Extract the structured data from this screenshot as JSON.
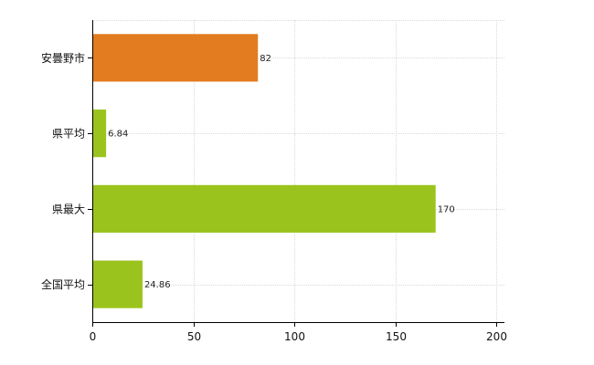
{
  "chart_data": {
    "type": "bar",
    "orientation": "horizontal",
    "categories": [
      "安曇野市",
      "県平均",
      "県最大",
      "全国平均"
    ],
    "values": [
      82,
      6.84,
      170,
      24.86
    ],
    "value_labels": [
      "82",
      "6.84",
      "170",
      "24.86"
    ],
    "bar_colors": [
      "#e37b21",
      "#9ac41d",
      "#9ac41d",
      "#9ac41d"
    ],
    "xlim": [
      0,
      200
    ],
    "xticks": [
      0,
      50,
      100,
      150,
      200
    ],
    "grid": true,
    "legend": "none"
  }
}
